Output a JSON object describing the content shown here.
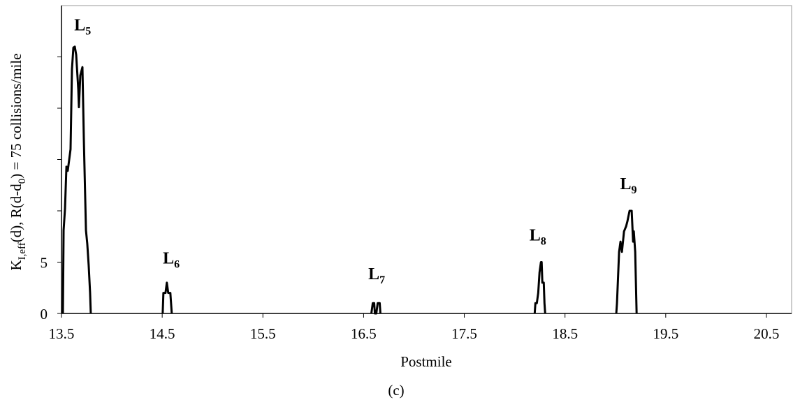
{
  "chart_data": {
    "type": "line",
    "y_label": [
      "K",
      "I,eff",
      "(d), R(d-d",
      "0",
      ") = 75 collisions/mile"
    ],
    "x_label": "Postmile",
    "caption": "(c)",
    "xlim": [
      13.5,
      20.75
    ],
    "xticks": [
      13.5,
      14.5,
      15.5,
      16.5,
      17.5,
      18.5,
      19.5,
      20.5
    ],
    "ylim": [
      0,
      30
    ],
    "yticks": [
      0,
      5
    ],
    "yticks_unlabeled": [
      10,
      15,
      20,
      25
    ],
    "x": [
      13.514,
      13.521,
      13.535,
      13.549,
      13.562,
      13.59,
      13.604,
      13.618,
      13.632,
      13.646,
      13.667,
      13.673,
      13.687,
      13.708,
      13.722,
      13.743,
      13.756,
      13.77,
      13.784,
      13.791,
      null,
      14.505,
      14.512,
      14.533,
      14.546,
      14.56,
      14.581,
      14.595,
      null,
      16.577,
      16.591,
      16.605,
      16.612,
      16.626,
      16.64,
      16.66,
      16.667,
      null,
      18.199,
      18.206,
      18.22,
      18.234,
      18.247,
      18.261,
      18.268,
      18.275,
      18.289,
      18.296,
      18.303,
      null,
      19.009,
      19.016,
      19.037,
      19.051,
      19.065,
      19.086,
      19.107,
      19.12,
      19.141,
      19.162,
      19.176,
      19.183,
      19.197,
      19.211
    ],
    "series": [
      {
        "color": "#000000",
        "values": [
          0,
          8.1,
          10.2,
          14.3,
          13.9,
          16,
          23.8,
          25.9,
          26,
          25.2,
          21.8,
          20.1,
          23.2,
          24,
          17,
          8.1,
          6.8,
          4.7,
          2,
          0,
          null,
          0,
          2,
          2,
          3,
          2,
          2,
          0,
          null,
          0,
          1,
          1,
          0,
          0,
          1,
          1,
          0,
          null,
          0,
          1,
          1,
          2,
          4,
          5,
          5,
          3,
          3,
          1,
          0,
          null,
          0,
          1,
          6,
          7,
          6,
          8,
          8.5,
          9,
          10,
          10,
          7,
          8,
          6,
          0
        ]
      }
    ],
    "annotations": [
      {
        "text": "L",
        "sub": "5",
        "x": 13.71,
        "y": 27.6
      },
      {
        "text": "L",
        "sub": "6",
        "x": 14.59,
        "y": 4.85
      },
      {
        "text": "L",
        "sub": "7",
        "x": 16.63,
        "y": 3.35
      },
      {
        "text": "L",
        "sub": "8",
        "x": 18.23,
        "y": 7.1
      },
      {
        "text": "L",
        "sub": "9",
        "x": 19.13,
        "y": 12.1
      }
    ]
  }
}
